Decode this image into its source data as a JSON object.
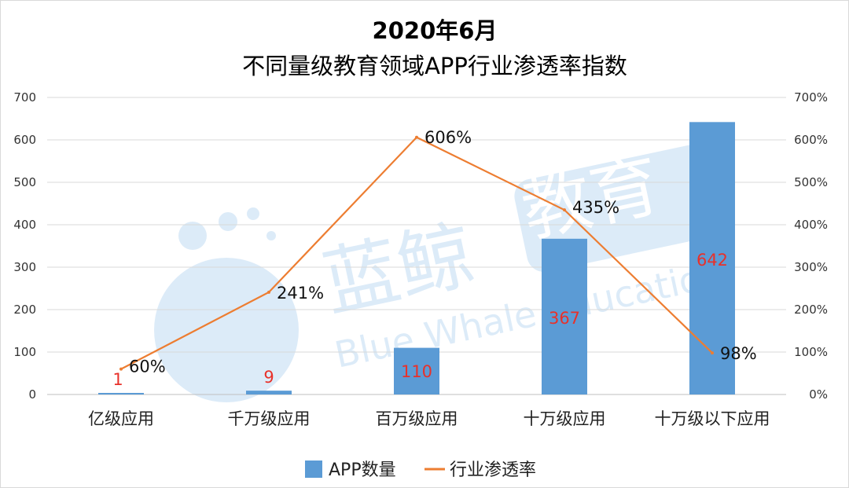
{
  "chart_data": {
    "type": "bar",
    "title_line1": "2020年6月",
    "title_line2": "不同量级教育领域APP行业渗透率指数",
    "categories": [
      "亿级应用",
      "千万级应用",
      "百万级应用",
      "十万级应用",
      "十万级以下应用"
    ],
    "series": [
      {
        "name": "APP数量",
        "type": "bar",
        "axis": "left",
        "values": [
          1,
          9,
          110,
          367,
          642
        ],
        "color": "#5b9bd5",
        "label_color": "#e8312a"
      },
      {
        "name": "行业渗透率",
        "type": "line",
        "axis": "right",
        "values": [
          60,
          241,
          606,
          435,
          98
        ],
        "labels": [
          "60%",
          "241%",
          "606%",
          "435%",
          "98%"
        ],
        "color": "#ed7d31"
      }
    ],
    "ylim_left": [
      0,
      700
    ],
    "yticks_left": [
      "0",
      "100",
      "200",
      "300",
      "400",
      "500",
      "600",
      "700"
    ],
    "ylim_right": [
      0,
      700
    ],
    "yticks_right": [
      "0%",
      "100%",
      "200%",
      "300%",
      "400%",
      "500%",
      "600%",
      "700%"
    ],
    "grid": true,
    "legend_position": "bottom"
  },
  "watermark": {
    "brand_cn": "蓝鲸",
    "badge_cn": "教育",
    "brand_en": "Blue Whale Education"
  }
}
